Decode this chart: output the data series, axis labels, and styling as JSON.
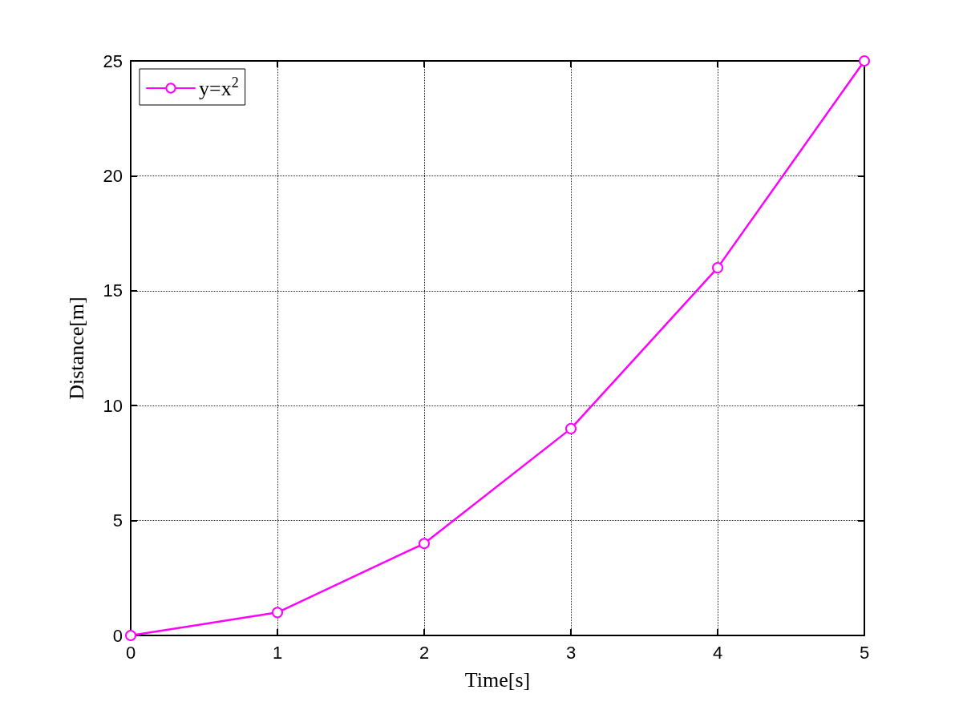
{
  "chart_data": {
    "type": "line",
    "xlabel": "Time[s]",
    "ylabel": "Distance[m]",
    "x": [
      0,
      1,
      2,
      3,
      4,
      5
    ],
    "series": [
      {
        "name": "y=x$^{2}$",
        "color": "#ff00ff",
        "values": [
          0,
          1,
          4,
          9,
          16,
          25
        ]
      }
    ],
    "xlim": [
      0,
      5
    ],
    "xticks": [
      0,
      1,
      2,
      3,
      4,
      5
    ],
    "ylim": [
      0,
      25
    ],
    "yticks": [
      0,
      5,
      10,
      15,
      20,
      25
    ],
    "grid": true,
    "legend": "top left",
    "marker": "circle",
    "line_style": "solid"
  }
}
